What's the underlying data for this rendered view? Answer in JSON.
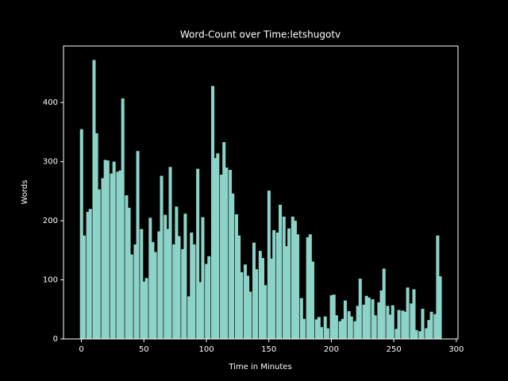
{
  "chart_data": {
    "type": "bar",
    "title": "Word-Count over Time:letshugotv",
    "x_label": "Time in Minutes",
    "y_label": "Words",
    "color": "#8dd3c7",
    "x": [
      0,
      2,
      5,
      7,
      10,
      12,
      14,
      17,
      19,
      21,
      24,
      26,
      29,
      31,
      33,
      36,
      38,
      40,
      43,
      45,
      48,
      50,
      52,
      55,
      57,
      59,
      62,
      64,
      67,
      69,
      71,
      74,
      76,
      78,
      81,
      83,
      86,
      88,
      90,
      93,
      95,
      97,
      100,
      102,
      105,
      107,
      109,
      112,
      114,
      116,
      119,
      121,
      124,
      126,
      128,
      131,
      133,
      135,
      138,
      140,
      143,
      145,
      147,
      150,
      152,
      154,
      157,
      159,
      162,
      164,
      166,
      169,
      171,
      173,
      176,
      178,
      181,
      183,
      185,
      188,
      190,
      192,
      195,
      197,
      200,
      202,
      204,
      207,
      209,
      211,
      214,
      216,
      219,
      221,
      223,
      226,
      228,
      230,
      233,
      235,
      238,
      240,
      242,
      245,
      247,
      249,
      252,
      254,
      257,
      259,
      261,
      264,
      266,
      268,
      271,
      273,
      276,
      278,
      280,
      283,
      285,
      287
    ],
    "values": [
      355,
      175,
      215,
      220,
      472,
      348,
      253,
      272,
      303,
      302,
      280,
      300,
      283,
      285,
      407,
      243,
      222,
      143,
      160,
      318,
      186,
      97,
      103,
      205,
      164,
      147,
      182,
      276,
      210,
      186,
      291,
      160,
      224,
      174,
      152,
      212,
      72,
      180,
      160,
      288,
      96,
      206,
      127,
      140,
      428,
      306,
      314,
      278,
      333,
      290,
      286,
      246,
      211,
      175,
      113,
      126,
      107,
      80,
      163,
      118,
      149,
      137,
      91,
      251,
      136,
      184,
      180,
      227,
      207,
      157,
      187,
      207,
      200,
      177,
      69,
      34,
      172,
      177,
      131,
      33,
      37,
      20,
      38,
      18,
      74,
      75,
      40,
      30,
      34,
      65,
      47,
      38,
      30,
      56,
      102,
      58,
      73,
      70,
      67,
      40,
      62,
      82,
      119,
      56,
      41,
      57,
      17,
      49,
      48,
      46,
      87,
      60,
      84,
      15,
      13,
      51,
      18,
      32,
      46,
      42,
      175,
      106
    ],
    "xlim": [
      -14.35,
      301.35
    ],
    "ylim": [
      0,
      495.6
    ],
    "xticks": [
      0,
      50,
      100,
      150,
      200,
      250,
      300
    ],
    "yticks": [
      0,
      100,
      200,
      300,
      400
    ]
  }
}
